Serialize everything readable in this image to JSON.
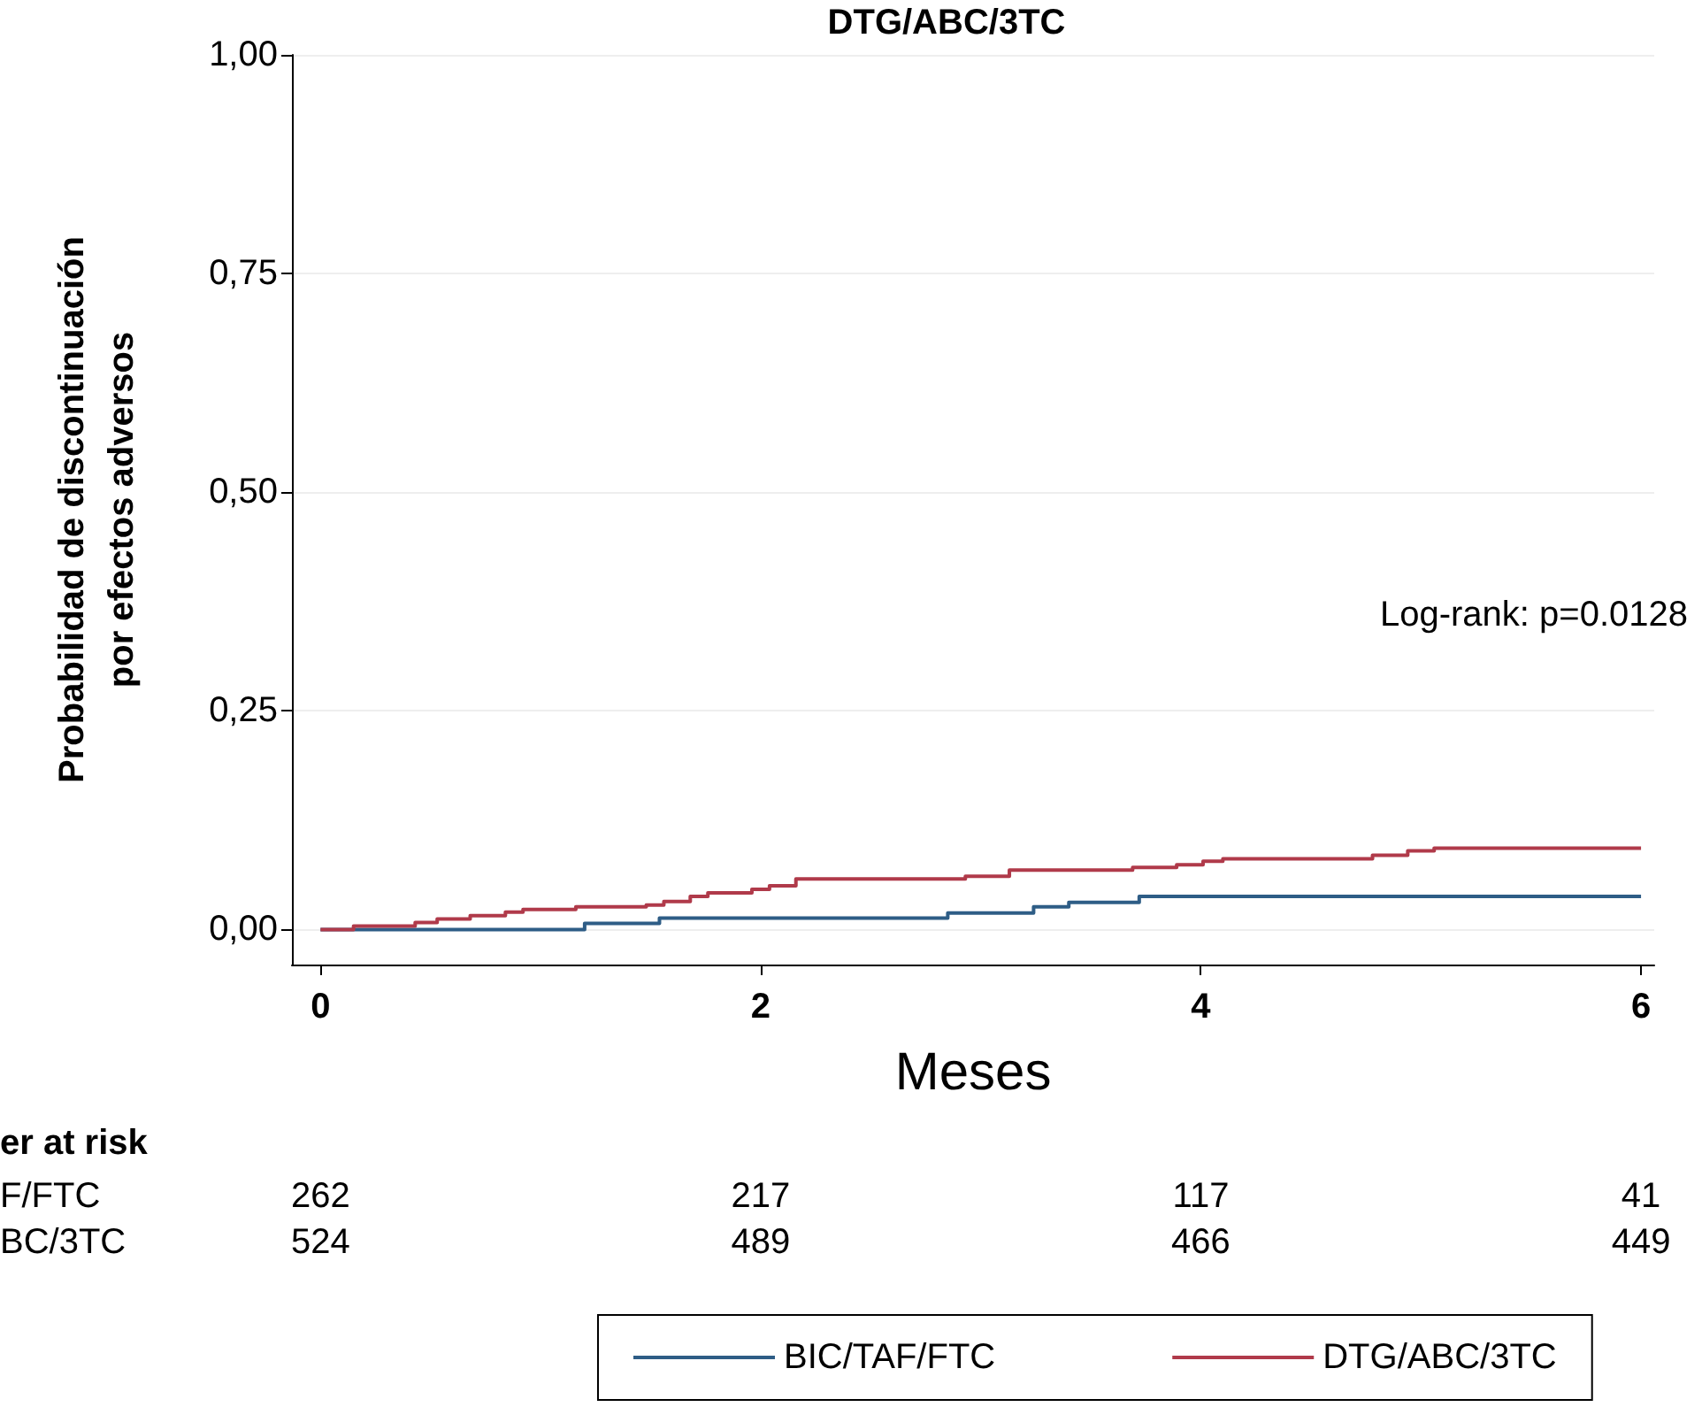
{
  "chart_data": {
    "type": "step",
    "title": "DTG/ABC/3TC",
    "xlabel": "Meses",
    "ylabel": "Probabilidad de discontinuación\npor efectos adversos",
    "annotations": [
      "Log-rank: p=0.0128",
      "er at risk",
      "F/FTC",
      "262",
      "217",
      "117",
      "41",
      "BC/3TC",
      "524",
      "489",
      "466",
      "449"
    ],
    "series": [
      {
        "name": "BIC/TAF/FTC",
        "color": "#2e5d86",
        "x": [
          0,
          1.2,
          1.54,
          2.85,
          3.24,
          3.4,
          3.72,
          6
        ],
        "values": [
          0,
          0.007,
          0.013,
          0.019,
          0.026,
          0.031,
          0.038,
          0.038
        ]
      },
      {
        "name": "DTG/ABC/3TC",
        "color": "#b03a4a",
        "x": [
          0,
          0.15,
          0.43,
          0.53,
          0.68,
          0.84,
          0.92,
          1.16,
          1.48,
          1.56,
          1.68,
          1.76,
          1.96,
          2.04,
          2.16,
          2.93,
          3.13,
          3.69,
          3.89,
          4.01,
          4.1,
          4.78,
          4.94,
          5.06,
          6
        ],
        "values": [
          0,
          0.004,
          0.008,
          0.012,
          0.016,
          0.02,
          0.023,
          0.026,
          0.028,
          0.032,
          0.038,
          0.042,
          0.046,
          0.05,
          0.058,
          0.061,
          0.068,
          0.071,
          0.074,
          0.078,
          0.081,
          0.085,
          0.09,
          0.093,
          0.093
        ]
      }
    ],
    "xlim": [
      -0.13,
      6.06
    ],
    "xticks": [
      0,
      2,
      4,
      6
    ],
    "ylim": [
      -0.04,
      1.0
    ],
    "yticks": [
      {
        "value": 0,
        "label": "0,00"
      },
      {
        "value": 0.25,
        "label": "0,25"
      },
      {
        "value": 0.5,
        "label": "0,50"
      },
      {
        "value": 0.75,
        "label": "0,75"
      },
      {
        "value": 1,
        "label": "1,00"
      }
    ],
    "grid": "y",
    "legend": "bottom",
    "marker": "none",
    "line_style": "solid"
  }
}
